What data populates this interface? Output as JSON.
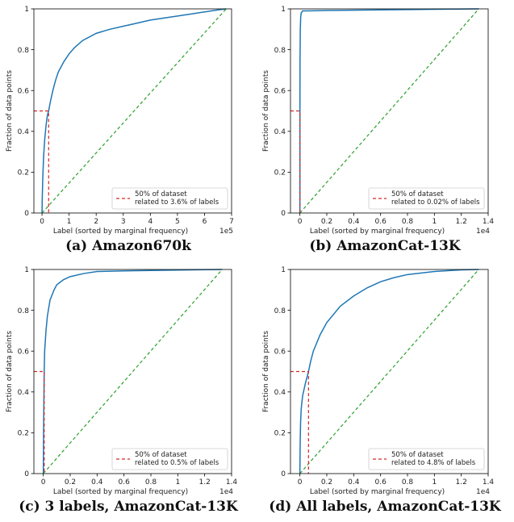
{
  "colors": {
    "curve": "#1f77b4",
    "uniform": "#2ca02c",
    "marker": "#d62728",
    "axis": "#000000"
  },
  "chart_data": [
    {
      "type": "line",
      "caption": "(a) Amazon670k",
      "xlabel": "Label (sorted by marginal frequency)",
      "ylabel": "Fraction of data points",
      "xlim": [
        -0.3,
        7.0
      ],
      "ylim": [
        0,
        1.0
      ],
      "x_multiplier": "1e5",
      "xticks": [
        0,
        1,
        2,
        3,
        4,
        5,
        6,
        7
      ],
      "xtick_labels": [
        "0",
        "1",
        "2",
        "3",
        "4",
        "5",
        "6",
        "7"
      ],
      "yticks": [
        0.0,
        0.2,
        0.4,
        0.6,
        0.8,
        1.0
      ],
      "ytick_labels": [
        "0.0",
        "0.2",
        "0.4",
        "0.6",
        "0.8",
        "1.0"
      ],
      "legend": {
        "position": "lower-right",
        "label_lines": [
          "50% of dataset",
          "related to 3.6% of labels"
        ]
      },
      "series": [
        {
          "role": "cdf",
          "x": [
            0,
            0.01,
            0.03,
            0.06,
            0.1,
            0.15,
            0.2,
            0.245,
            0.3,
            0.4,
            0.5,
            0.6,
            0.8,
            1.0,
            1.2,
            1.5,
            2.0,
            2.5,
            3.0,
            3.5,
            4.0,
            4.5,
            5.0,
            5.5,
            6.0,
            6.5,
            6.8
          ],
          "y": [
            0,
            0.08,
            0.18,
            0.28,
            0.36,
            0.43,
            0.48,
            0.5,
            0.54,
            0.6,
            0.65,
            0.69,
            0.74,
            0.78,
            0.81,
            0.845,
            0.88,
            0.9,
            0.915,
            0.93,
            0.945,
            0.955,
            0.965,
            0.975,
            0.985,
            0.995,
            1.0
          ]
        },
        {
          "role": "uniform",
          "x": [
            0,
            6.8
          ],
          "y": [
            0,
            1.0
          ]
        },
        {
          "role": "half-marker",
          "x": [
            0.245
          ],
          "y": [
            0.5
          ]
        }
      ]
    },
    {
      "type": "line",
      "caption": "(b) AmazonCat-13K",
      "xlabel": "Label (sorted by marginal frequency)",
      "ylabel": "Fraction of data points",
      "xlim": [
        -0.07,
        1.4
      ],
      "ylim": [
        0,
        1.0
      ],
      "x_multiplier": "1e4",
      "xticks": [
        0.0,
        0.2,
        0.4,
        0.6,
        0.8,
        1.0,
        1.2,
        1.4
      ],
      "xtick_labels": [
        "0.0",
        "0.2",
        "0.4",
        "0.6",
        "0.8",
        "1.0",
        "1.2",
        "1.4"
      ],
      "yticks": [
        0.0,
        0.2,
        0.4,
        0.6,
        0.8,
        1.0
      ],
      "ytick_labels": [
        "0.0",
        "0.2",
        "0.4",
        "0.6",
        "0.8",
        "1.0"
      ],
      "legend": {
        "position": "lower-right",
        "label_lines": [
          "50% of dataset",
          "related to 0.02% of labels"
        ]
      },
      "series": [
        {
          "role": "cdf",
          "x": [
            0,
            0.0003,
            0.001,
            0.003,
            0.006,
            0.01,
            0.015,
            0.02,
            0.05,
            0.2,
            0.6,
            1.0,
            1.33
          ],
          "y": [
            0,
            0.5,
            0.75,
            0.9,
            0.96,
            0.98,
            0.985,
            0.99,
            0.99,
            0.992,
            0.995,
            0.998,
            1.0
          ]
        },
        {
          "role": "uniform",
          "x": [
            0,
            1.33
          ],
          "y": [
            0,
            1.0
          ]
        },
        {
          "role": "half-marker",
          "x": [
            0.0003
          ],
          "y": [
            0.5
          ]
        }
      ]
    },
    {
      "type": "line",
      "caption": "(c) 3 labels, AmazonCat-13K",
      "xlabel": "Label (sorted by marginal frequency)",
      "ylabel": "Fraction of data points",
      "xlim": [
        -0.07,
        1.4
      ],
      "ylim": [
        0,
        1.0
      ],
      "x_multiplier": "1e4",
      "xticks": [
        0.0,
        0.2,
        0.4,
        0.6,
        0.8,
        1.0,
        1.2,
        1.4
      ],
      "xtick_labels": [
        "0.0",
        "0.2",
        "0.4",
        "0.6",
        "0.8",
        "1.0",
        "1.2",
        "1.4"
      ],
      "yticks": [
        0.0,
        0.2,
        0.4,
        0.6,
        0.8,
        1.0
      ],
      "ytick_labels": [
        "0.0",
        "0.2",
        "0.4",
        "0.6",
        "0.8",
        "1.0"
      ],
      "legend": {
        "position": "lower-right",
        "label_lines": [
          "50% of dataset",
          "related to 0.5% of labels"
        ]
      },
      "series": [
        {
          "role": "cdf",
          "x": [
            0,
            0.002,
            0.005,
            0.0067,
            0.01,
            0.02,
            0.03,
            0.05,
            0.08,
            0.1,
            0.15,
            0.2,
            0.3,
            0.4,
            0.6,
            0.8,
            1.0,
            1.2,
            1.33
          ],
          "y": [
            0,
            0.2,
            0.4,
            0.5,
            0.6,
            0.7,
            0.77,
            0.85,
            0.9,
            0.925,
            0.95,
            0.965,
            0.98,
            0.99,
            0.993,
            0.995,
            0.997,
            0.999,
            1.0
          ]
        },
        {
          "role": "uniform",
          "x": [
            0,
            1.33
          ],
          "y": [
            0,
            1.0
          ]
        },
        {
          "role": "half-marker",
          "x": [
            0.0067
          ],
          "y": [
            0.5
          ]
        }
      ]
    },
    {
      "type": "line",
      "caption": "(d) All labels, AmazonCat-13K",
      "xlabel": "Label (sorted by marginal frequency)",
      "ylabel": "Fraction of data points",
      "xlim": [
        -0.07,
        1.4
      ],
      "ylim": [
        0,
        1.0
      ],
      "x_multiplier": "1e4",
      "xticks": [
        0.0,
        0.2,
        0.4,
        0.6,
        0.8,
        1.0,
        1.2,
        1.4
      ],
      "xtick_labels": [
        "0.0",
        "0.2",
        "0.4",
        "0.6",
        "0.8",
        "1.0",
        "1.2",
        "1.4"
      ],
      "yticks": [
        0.0,
        0.2,
        0.4,
        0.6,
        0.8,
        1.0
      ],
      "ytick_labels": [
        "0.0",
        "0.2",
        "0.4",
        "0.6",
        "0.8",
        "1.0"
      ],
      "legend": {
        "position": "lower-right",
        "label_lines": [
          "50% of dataset",
          "related to 4.8% of labels"
        ]
      },
      "series": [
        {
          "role": "cdf",
          "x": [
            0,
            0.002,
            0.005,
            0.01,
            0.02,
            0.04,
            0.064,
            0.08,
            0.1,
            0.15,
            0.2,
            0.3,
            0.4,
            0.5,
            0.6,
            0.7,
            0.8,
            1.0,
            1.2,
            1.33
          ],
          "y": [
            0,
            0.15,
            0.25,
            0.32,
            0.38,
            0.44,
            0.5,
            0.55,
            0.6,
            0.68,
            0.74,
            0.82,
            0.87,
            0.91,
            0.94,
            0.96,
            0.975,
            0.99,
            0.998,
            1.0
          ]
        },
        {
          "role": "uniform",
          "x": [
            0,
            1.33
          ],
          "y": [
            0,
            1.0
          ]
        },
        {
          "role": "half-marker",
          "x": [
            0.064
          ],
          "y": [
            0.5
          ]
        }
      ]
    }
  ]
}
